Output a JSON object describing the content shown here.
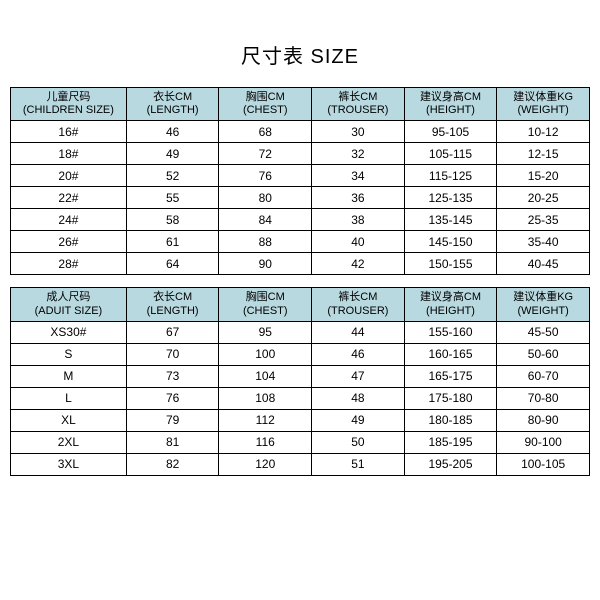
{
  "title": "尺寸表 SIZE",
  "header_bg": "#b9d9e0",
  "children": {
    "columns": [
      {
        "cn": "儿童尺码",
        "en": "(CHILDREN SIZE)"
      },
      {
        "cn": "衣长CM",
        "en": "(LENGTH)"
      },
      {
        "cn": "胸围CM",
        "en": "(CHEST)"
      },
      {
        "cn": "裤长CM",
        "en": "(TROUSER)"
      },
      {
        "cn": "建议身高CM",
        "en": "(HEIGHT)"
      },
      {
        "cn": "建议体重KG",
        "en": "(WEIGHT)"
      }
    ],
    "rows": [
      [
        "16#",
        "46",
        "68",
        "30",
        "95-105",
        "10-12"
      ],
      [
        "18#",
        "49",
        "72",
        "32",
        "105-115",
        "12-15"
      ],
      [
        "20#",
        "52",
        "76",
        "34",
        "115-125",
        "15-20"
      ],
      [
        "22#",
        "55",
        "80",
        "36",
        "125-135",
        "20-25"
      ],
      [
        "24#",
        "58",
        "84",
        "38",
        "135-145",
        "25-35"
      ],
      [
        "26#",
        "61",
        "88",
        "40",
        "145-150",
        "35-40"
      ],
      [
        "28#",
        "64",
        "90",
        "42",
        "150-155",
        "40-45"
      ]
    ]
  },
  "adult": {
    "columns": [
      {
        "cn": "成人尺码",
        "en": "(ADUIT SIZE)"
      },
      {
        "cn": "衣长CM",
        "en": "(LENGTH)"
      },
      {
        "cn": "胸围CM",
        "en": "(CHEST)"
      },
      {
        "cn": "裤长CM",
        "en": "(TROUSER)"
      },
      {
        "cn": "建议身高CM",
        "en": "(HEIGHT)"
      },
      {
        "cn": "建议体重KG",
        "en": "(WEIGHT)"
      }
    ],
    "rows": [
      [
        "XS30#",
        "67",
        "95",
        "44",
        "155-160",
        "45-50"
      ],
      [
        "S",
        "70",
        "100",
        "46",
        "160-165",
        "50-60"
      ],
      [
        "M",
        "73",
        "104",
        "47",
        "165-175",
        "60-70"
      ],
      [
        "L",
        "76",
        "108",
        "48",
        "175-180",
        "70-80"
      ],
      [
        "XL",
        "79",
        "112",
        "49",
        "180-185",
        "80-90"
      ],
      [
        "2XL",
        "81",
        "116",
        "50",
        "185-195",
        "90-100"
      ],
      [
        "3XL",
        "82",
        "120",
        "51",
        "195-205",
        "100-105"
      ]
    ]
  }
}
